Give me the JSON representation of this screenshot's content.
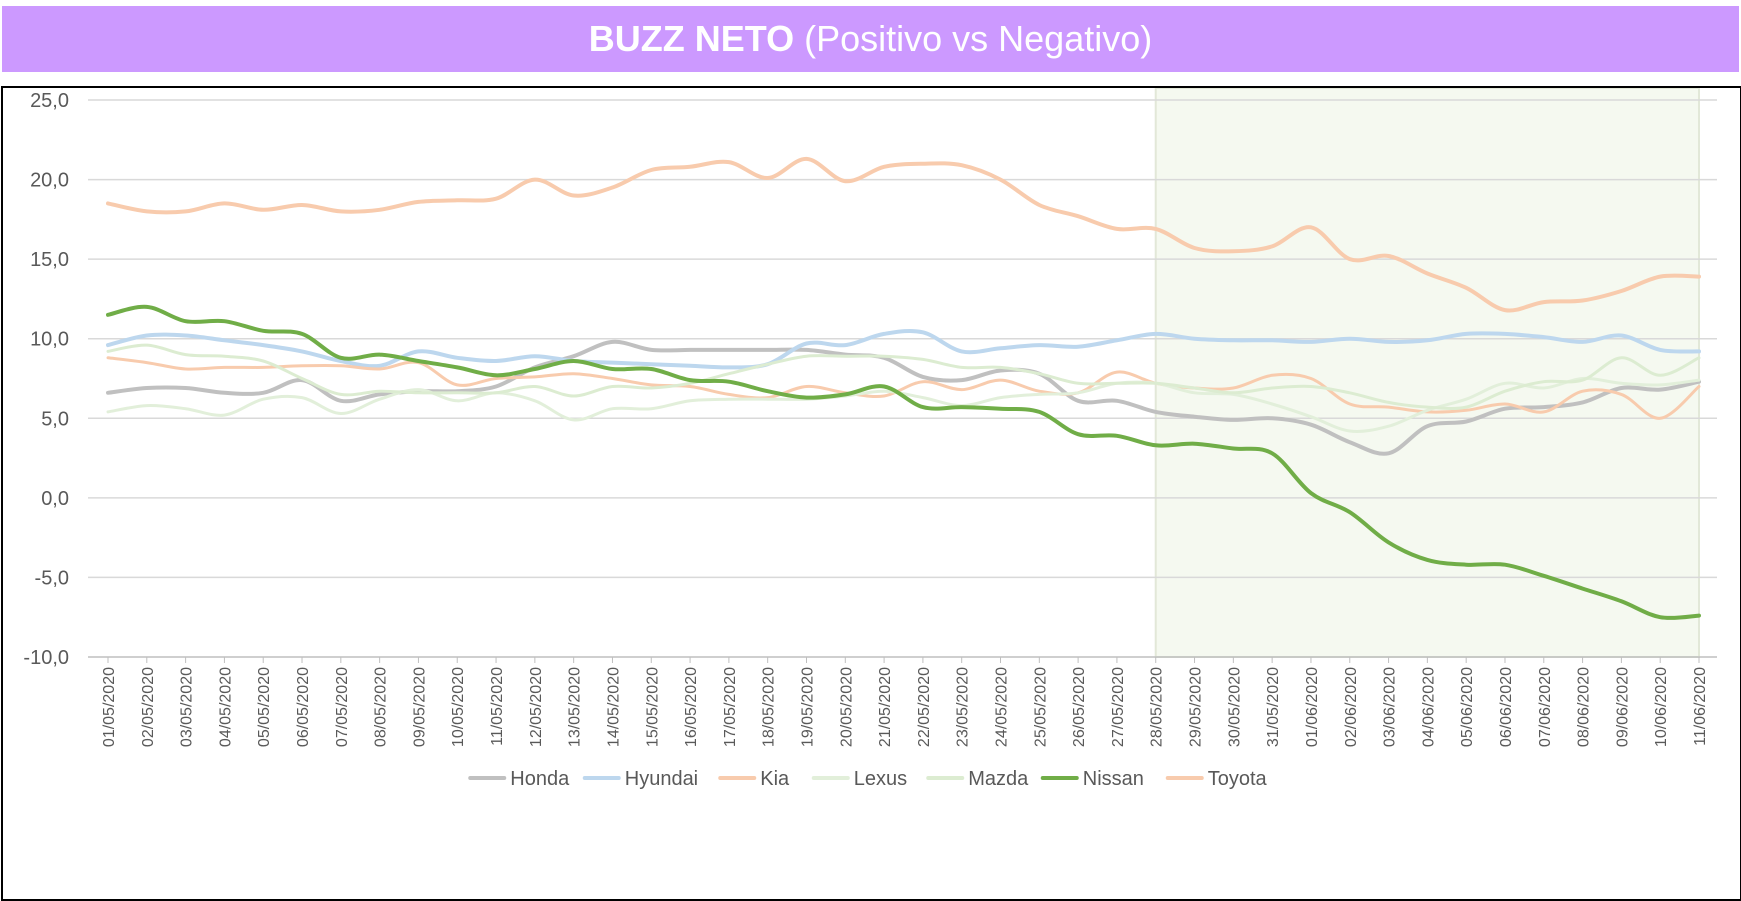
{
  "banner": {
    "title_bold": "BUZZ NETO",
    "title_rest": "(Positivo vs Negativo)",
    "background": "#cc99ff"
  },
  "chart_data": {
    "type": "line",
    "title": "BUZZ NETO (Positivo vs Negativo)",
    "xlabel": "",
    "ylabel": "",
    "ylim": [
      -10,
      25
    ],
    "y_ticks": [
      "25,0",
      "20,0",
      "15,0",
      "10,0",
      "5,0",
      "0,0",
      "-5,0",
      "-10,0"
    ],
    "y_tick_values": [
      25,
      20,
      15,
      10,
      5,
      0,
      -5,
      -10
    ],
    "grid": true,
    "legend": "bottom",
    "highlight_range": {
      "from": "28/05/2020",
      "to": "11/06/2020",
      "color": "#f5f9f0"
    },
    "x": [
      "01/05/2020",
      "02/05/2020",
      "03/05/2020",
      "04/05/2020",
      "05/05/2020",
      "06/05/2020",
      "07/05/2020",
      "08/05/2020",
      "09/05/2020",
      "10/05/2020",
      "11/05/2020",
      "12/05/2020",
      "13/05/2020",
      "14/05/2020",
      "15/05/2020",
      "16/05/2020",
      "17/05/2020",
      "18/05/2020",
      "19/05/2020",
      "20/05/2020",
      "21/05/2020",
      "22/05/2020",
      "23/05/2020",
      "24/05/2020",
      "25/05/2020",
      "26/05/2020",
      "27/05/2020",
      "28/05/2020",
      "29/05/2020",
      "30/05/2020",
      "31/05/2020",
      "01/06/2020",
      "02/06/2020",
      "03/06/2020",
      "04/06/2020",
      "05/06/2020",
      "06/06/2020",
      "07/06/2020",
      "08/06/2020",
      "09/06/2020",
      "10/06/2020",
      "11/06/2020"
    ],
    "series": [
      {
        "name": "Honda",
        "color": "#c0c0c0",
        "width": 4,
        "values": [
          6.6,
          6.9,
          6.9,
          6.6,
          6.6,
          7.4,
          6.1,
          6.5,
          6.7,
          6.7,
          7.0,
          8.2,
          8.9,
          9.8,
          9.3,
          9.3,
          9.3,
          9.3,
          9.3,
          9.0,
          8.8,
          7.6,
          7.4,
          8.0,
          7.8,
          6.1,
          6.1,
          5.4,
          5.1,
          4.9,
          5.0,
          4.6,
          3.5,
          2.8,
          4.5,
          4.8,
          5.6,
          5.7,
          6.0,
          6.9,
          6.8,
          7.3
        ]
      },
      {
        "name": "Hyundai",
        "color": "#bdd7ee",
        "width": 4,
        "values": [
          9.6,
          10.2,
          10.2,
          9.9,
          9.6,
          9.2,
          8.6,
          8.3,
          9.2,
          8.8,
          8.6,
          8.9,
          8.6,
          8.5,
          8.4,
          8.3,
          8.2,
          8.4,
          9.7,
          9.6,
          10.3,
          10.4,
          9.2,
          9.4,
          9.6,
          9.5,
          9.9,
          10.3,
          10.0,
          9.9,
          9.9,
          9.8,
          10.0,
          9.8,
          9.9,
          10.3,
          10.3,
          10.1,
          9.8,
          10.2,
          9.3,
          9.2
        ]
      },
      {
        "name": "Kia",
        "color": "#f8cbad",
        "width": 3,
        "values": [
          8.8,
          8.5,
          8.1,
          8.2,
          8.2,
          8.3,
          8.3,
          8.1,
          8.5,
          7.1,
          7.5,
          7.6,
          7.8,
          7.5,
          7.1,
          7.0,
          6.5,
          6.3,
          7.0,
          6.6,
          6.4,
          7.3,
          6.8,
          7.4,
          6.7,
          6.6,
          7.9,
          7.2,
          6.9,
          6.9,
          7.7,
          7.5,
          5.9,
          5.7,
          5.4,
          5.5,
          5.9,
          5.4,
          6.7,
          6.5,
          5.0,
          7.0
        ]
      },
      {
        "name": "Lexus",
        "color": "#e2efda",
        "width": 3,
        "values": [
          5.4,
          5.8,
          5.6,
          5.2,
          6.2,
          6.3,
          5.3,
          6.2,
          6.8,
          6.1,
          6.6,
          6.1,
          4.9,
          5.6,
          5.6,
          6.1,
          6.2,
          6.2,
          6.2,
          6.4,
          6.7,
          6.3,
          5.8,
          6.3,
          6.5,
          6.6,
          7.2,
          7.2,
          6.6,
          6.5,
          5.9,
          5.1,
          4.2,
          4.5,
          5.5,
          6.2,
          7.2,
          6.9,
          7.5,
          7.2,
          7.1,
          7.4
        ]
      },
      {
        "name": "Mazda",
        "color": "#dcecd1",
        "width": 3,
        "values": [
          9.2,
          9.6,
          9.0,
          8.9,
          8.6,
          7.5,
          6.5,
          6.7,
          6.6,
          6.6,
          6.6,
          7.0,
          6.4,
          7.0,
          6.9,
          7.2,
          7.8,
          8.4,
          8.9,
          8.9,
          8.9,
          8.7,
          8.2,
          8.2,
          7.8,
          7.2,
          7.2,
          7.2,
          6.9,
          6.6,
          6.9,
          7.0,
          6.6,
          6.0,
          5.7,
          5.7,
          6.7,
          7.3,
          7.4,
          8.8,
          7.7,
          8.8
        ]
      },
      {
        "name": "Nissan",
        "color": "#70ad47",
        "width": 4,
        "values": [
          11.5,
          12.0,
          11.1,
          11.1,
          10.5,
          10.3,
          8.8,
          9.0,
          8.6,
          8.2,
          7.7,
          8.1,
          8.6,
          8.1,
          8.1,
          7.4,
          7.3,
          6.7,
          6.3,
          6.5,
          7.0,
          5.7,
          5.7,
          5.6,
          5.4,
          4.0,
          3.9,
          3.3,
          3.4,
          3.1,
          2.8,
          0.3,
          -0.9,
          -2.8,
          -3.9,
          -4.2,
          -4.2,
          -4.9,
          -5.7,
          -6.5,
          -7.5,
          -7.4
        ]
      },
      {
        "name": "Toyota",
        "color": "#f8cbad",
        "width": 4,
        "values": [
          18.5,
          18.0,
          18.0,
          18.5,
          18.1,
          18.4,
          18.0,
          18.1,
          18.6,
          18.7,
          18.8,
          20.0,
          19.0,
          19.5,
          20.6,
          20.8,
          21.1,
          20.1,
          21.3,
          19.9,
          20.8,
          21.0,
          20.9,
          20.0,
          18.4,
          17.7,
          16.9,
          16.9,
          15.7,
          15.5,
          15.8,
          17.0,
          15.0,
          15.2,
          14.1,
          13.2,
          11.8,
          12.3,
          12.4,
          13.0,
          13.9,
          13.9
        ]
      }
    ]
  }
}
